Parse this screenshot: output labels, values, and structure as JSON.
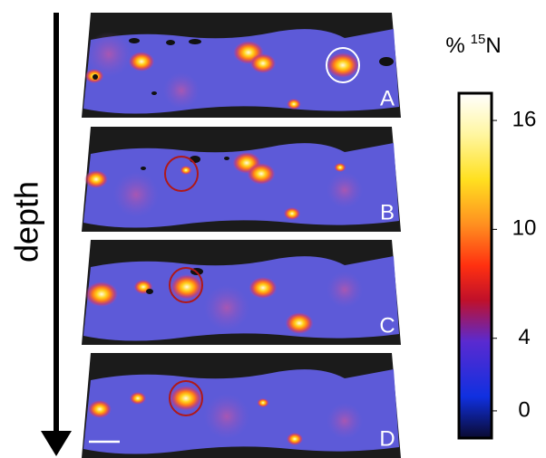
{
  "figure": {
    "axis_label": "depth",
    "panels": [
      {
        "label": "A"
      },
      {
        "label": "B"
      },
      {
        "label": "C"
      },
      {
        "label": "D"
      }
    ],
    "colorbar": {
      "label_prefix": "%",
      "isotope_mass": "15",
      "element": "N",
      "range": [
        -1.5,
        17.5
      ],
      "ticks": [
        0,
        4,
        10,
        16
      ]
    }
  }
}
